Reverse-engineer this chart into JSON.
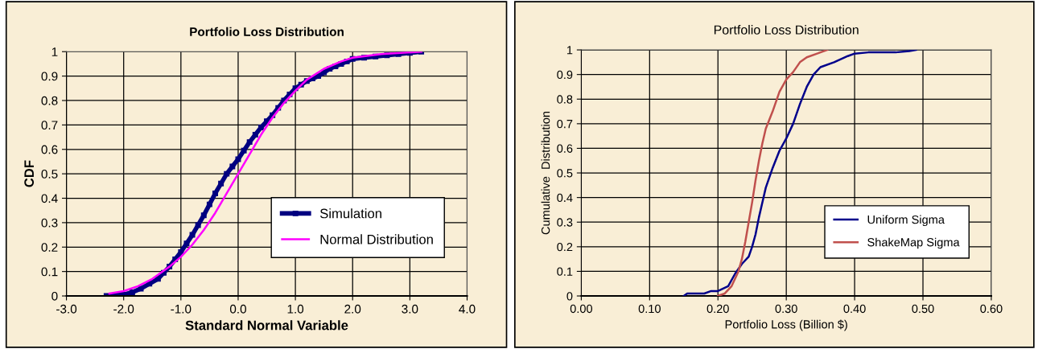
{
  "chart_data": [
    {
      "type": "line",
      "title": "Portfolio Loss Distribution",
      "xlabel": "Standard Normal Variable",
      "ylabel": "CDF",
      "xlim": [
        -3,
        4
      ],
      "xticks": [
        {
          "value": -3,
          "label": "-3.0"
        },
        {
          "value": -2,
          "label": "-2.0"
        },
        {
          "value": -1,
          "label": "-1.0"
        },
        {
          "value": 0,
          "label": "0.0"
        },
        {
          "value": 1,
          "label": "1.0"
        },
        {
          "value": 2,
          "label": "2.0"
        },
        {
          "value": 3,
          "label": "3.0"
        },
        {
          "value": 4,
          "label": "4.0"
        }
      ],
      "ylim": [
        0,
        1
      ],
      "yticks": [
        0,
        0.1,
        0.2,
        0.3,
        0.4,
        0.5,
        0.6,
        0.7,
        0.8,
        0.9,
        1
      ],
      "grid": true,
      "legend": "lower right",
      "series": [
        {
          "name": "Simulation",
          "color": "#000080",
          "marker": "square",
          "x": [
            -2.3,
            -2.15,
            -2.0,
            -1.85,
            -1.7,
            -1.55,
            -1.4,
            -1.3,
            -1.2,
            -1.1,
            -1.0,
            -0.9,
            -0.8,
            -0.7,
            -0.6,
            -0.5,
            -0.4,
            -0.3,
            -0.2,
            -0.1,
            0.0,
            0.1,
            0.2,
            0.3,
            0.4,
            0.5,
            0.6,
            0.7,
            0.8,
            0.9,
            1.0,
            1.1,
            1.2,
            1.3,
            1.4,
            1.5,
            1.6,
            1.7,
            1.8,
            1.9,
            2.0,
            2.2,
            2.4,
            2.6,
            2.8,
            3.0,
            3.2
          ],
          "values": [
            0,
            0.003,
            0.005,
            0.015,
            0.03,
            0.05,
            0.07,
            0.095,
            0.12,
            0.15,
            0.18,
            0.215,
            0.25,
            0.29,
            0.33,
            0.375,
            0.42,
            0.46,
            0.5,
            0.53,
            0.56,
            0.595,
            0.63,
            0.66,
            0.69,
            0.715,
            0.74,
            0.77,
            0.8,
            0.825,
            0.85,
            0.865,
            0.88,
            0.89,
            0.9,
            0.915,
            0.93,
            0.94,
            0.95,
            0.96,
            0.97,
            0.975,
            0.98,
            0.985,
            0.99,
            0.995,
            1.0
          ]
        },
        {
          "name": "Normal Distribution",
          "color": "#ff00ff",
          "marker": "none",
          "x": [
            -2.25,
            -2.0,
            -1.75,
            -1.5,
            -1.2,
            -1.0,
            -0.8,
            -0.6,
            -0.4,
            -0.2,
            0.0,
            0.2,
            0.4,
            0.6,
            0.8,
            1.0,
            1.2,
            1.5,
            1.8,
            2.0,
            2.5,
            3.2
          ],
          "values": [
            0.01,
            0.02,
            0.04,
            0.07,
            0.12,
            0.16,
            0.21,
            0.27,
            0.34,
            0.42,
            0.5,
            0.58,
            0.66,
            0.73,
            0.79,
            0.84,
            0.885,
            0.93,
            0.96,
            0.975,
            0.99,
            1.0
          ]
        }
      ]
    },
    {
      "type": "line",
      "title": "Portfolio Loss Distribution",
      "xlabel": "Portfolio Loss (Billion $)",
      "ylabel": "Cumulative  Distribution",
      "xlim": [
        0,
        0.6
      ],
      "xticks": [
        {
          "value": 0,
          "label": "0.00"
        },
        {
          "value": 0.1,
          "label": "0.10"
        },
        {
          "value": 0.2,
          "label": "0.20"
        },
        {
          "value": 0.3,
          "label": "0.30"
        },
        {
          "value": 0.4,
          "label": "0.40"
        },
        {
          "value": 0.5,
          "label": "0.50"
        },
        {
          "value": 0.6,
          "label": "0.60"
        }
      ],
      "ylim": [
        0,
        1
      ],
      "yticks": [
        0,
        0.1,
        0.2,
        0.3,
        0.4,
        0.5,
        0.6,
        0.7,
        0.8,
        0.9,
        1
      ],
      "grid": true,
      "legend": "lower right",
      "series": [
        {
          "name": "Uniform Sigma",
          "color": "#00008b",
          "x": [
            0.15,
            0.155,
            0.18,
            0.19,
            0.2,
            0.215,
            0.225,
            0.235,
            0.245,
            0.25,
            0.255,
            0.26,
            0.265,
            0.27,
            0.28,
            0.29,
            0.3,
            0.31,
            0.32,
            0.33,
            0.34,
            0.35,
            0.37,
            0.39,
            0.4,
            0.42,
            0.46,
            0.48,
            0.49
          ],
          "values": [
            0,
            0.01,
            0.01,
            0.02,
            0.02,
            0.04,
            0.09,
            0.13,
            0.16,
            0.2,
            0.25,
            0.32,
            0.38,
            0.44,
            0.52,
            0.59,
            0.64,
            0.7,
            0.78,
            0.85,
            0.9,
            0.93,
            0.95,
            0.975,
            0.985,
            0.99,
            0.99,
            0.995,
            1.0
          ]
        },
        {
          "name": "ShakeMap Sigma",
          "color": "#c0504d",
          "x": [
            0.2,
            0.21,
            0.22,
            0.23,
            0.235,
            0.24,
            0.245,
            0.25,
            0.255,
            0.26,
            0.265,
            0.27,
            0.28,
            0.29,
            0.3,
            0.31,
            0.32,
            0.33,
            0.35,
            0.36
          ],
          "values": [
            0,
            0.01,
            0.04,
            0.1,
            0.15,
            0.22,
            0.3,
            0.38,
            0.47,
            0.55,
            0.62,
            0.68,
            0.75,
            0.83,
            0.88,
            0.91,
            0.95,
            0.97,
            0.99,
            1.0
          ]
        }
      ]
    }
  ]
}
